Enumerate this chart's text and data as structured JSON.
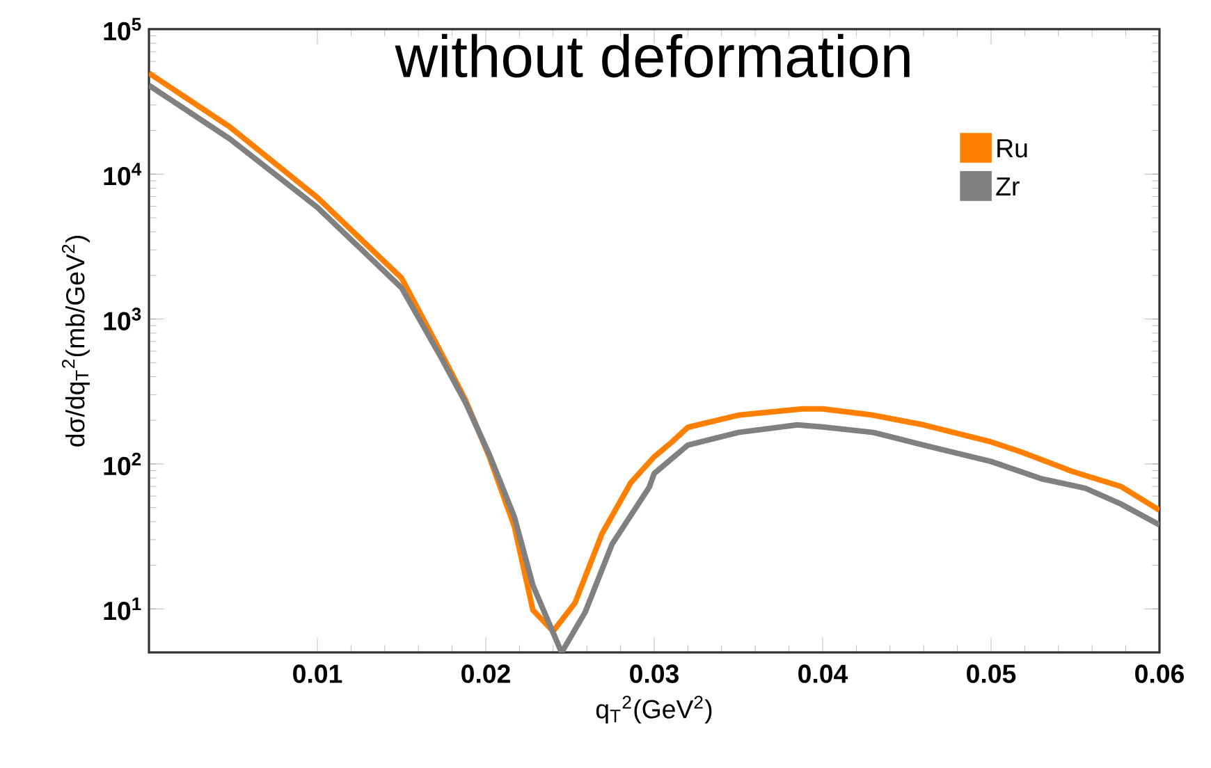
{
  "chart_data": {
    "type": "line",
    "title": "without deformation",
    "xlabel": "q$_{T}$$^{2}$(GeV$^{2}$)",
    "ylabel": "dσ/dq$_{T}$$^{2}$(mb/GeV$^{2}$)",
    "log": "y",
    "xlim": [
      0,
      0.06
    ],
    "ylim": [
      5,
      100000
    ],
    "xticks": [
      0.01,
      0.02,
      0.03,
      0.04,
      0.05,
      0.06
    ],
    "yticks": [
      {
        "value": 10,
        "label": "10$^{1}$"
      },
      {
        "value": 100,
        "label": "10$^{2}$"
      },
      {
        "value": 1000,
        "label": "10$^{3}$"
      },
      {
        "value": 10000,
        "label": "10$^{4}$"
      },
      {
        "value": 100000,
        "label": "10$^{5}$"
      }
    ],
    "legend": "top right",
    "series": [
      {
        "name": "Ru",
        "color": "#ff8000",
        "x": [
          0,
          0.0048,
          0.01,
          0.015,
          0.0173,
          0.0188,
          0.0202,
          0.0217,
          0.0228,
          0.024,
          0.0253,
          0.0269,
          0.0286,
          0.03,
          0.031,
          0.032,
          0.035,
          0.0388,
          0.04,
          0.043,
          0.046,
          0.05,
          0.0518,
          0.0548,
          0.0577,
          0.06
        ],
        "values": [
          49800,
          21200,
          6900,
          1920,
          600,
          275,
          113,
          37,
          9.8,
          7,
          11,
          33,
          74,
          112,
          140,
          179,
          217,
          240,
          240,
          217,
          186,
          142,
          121,
          89,
          70,
          48
        ]
      },
      {
        "name": "Zr",
        "color": "#808080",
        "x": [
          0,
          0.0048,
          0.01,
          0.015,
          0.0173,
          0.0188,
          0.0202,
          0.0217,
          0.0228,
          0.0245,
          0.0259,
          0.0275,
          0.0297,
          0.03,
          0.032,
          0.035,
          0.0385,
          0.04,
          0.043,
          0.046,
          0.05,
          0.053,
          0.0556,
          0.0577,
          0.06
        ],
        "values": [
          41000,
          17500,
          5900,
          1640,
          555,
          265,
          117,
          43,
          14.5,
          5,
          9.5,
          28,
          69,
          86,
          135,
          165,
          186,
          180,
          165,
          135,
          104,
          79,
          68,
          53,
          38
        ]
      }
    ]
  }
}
